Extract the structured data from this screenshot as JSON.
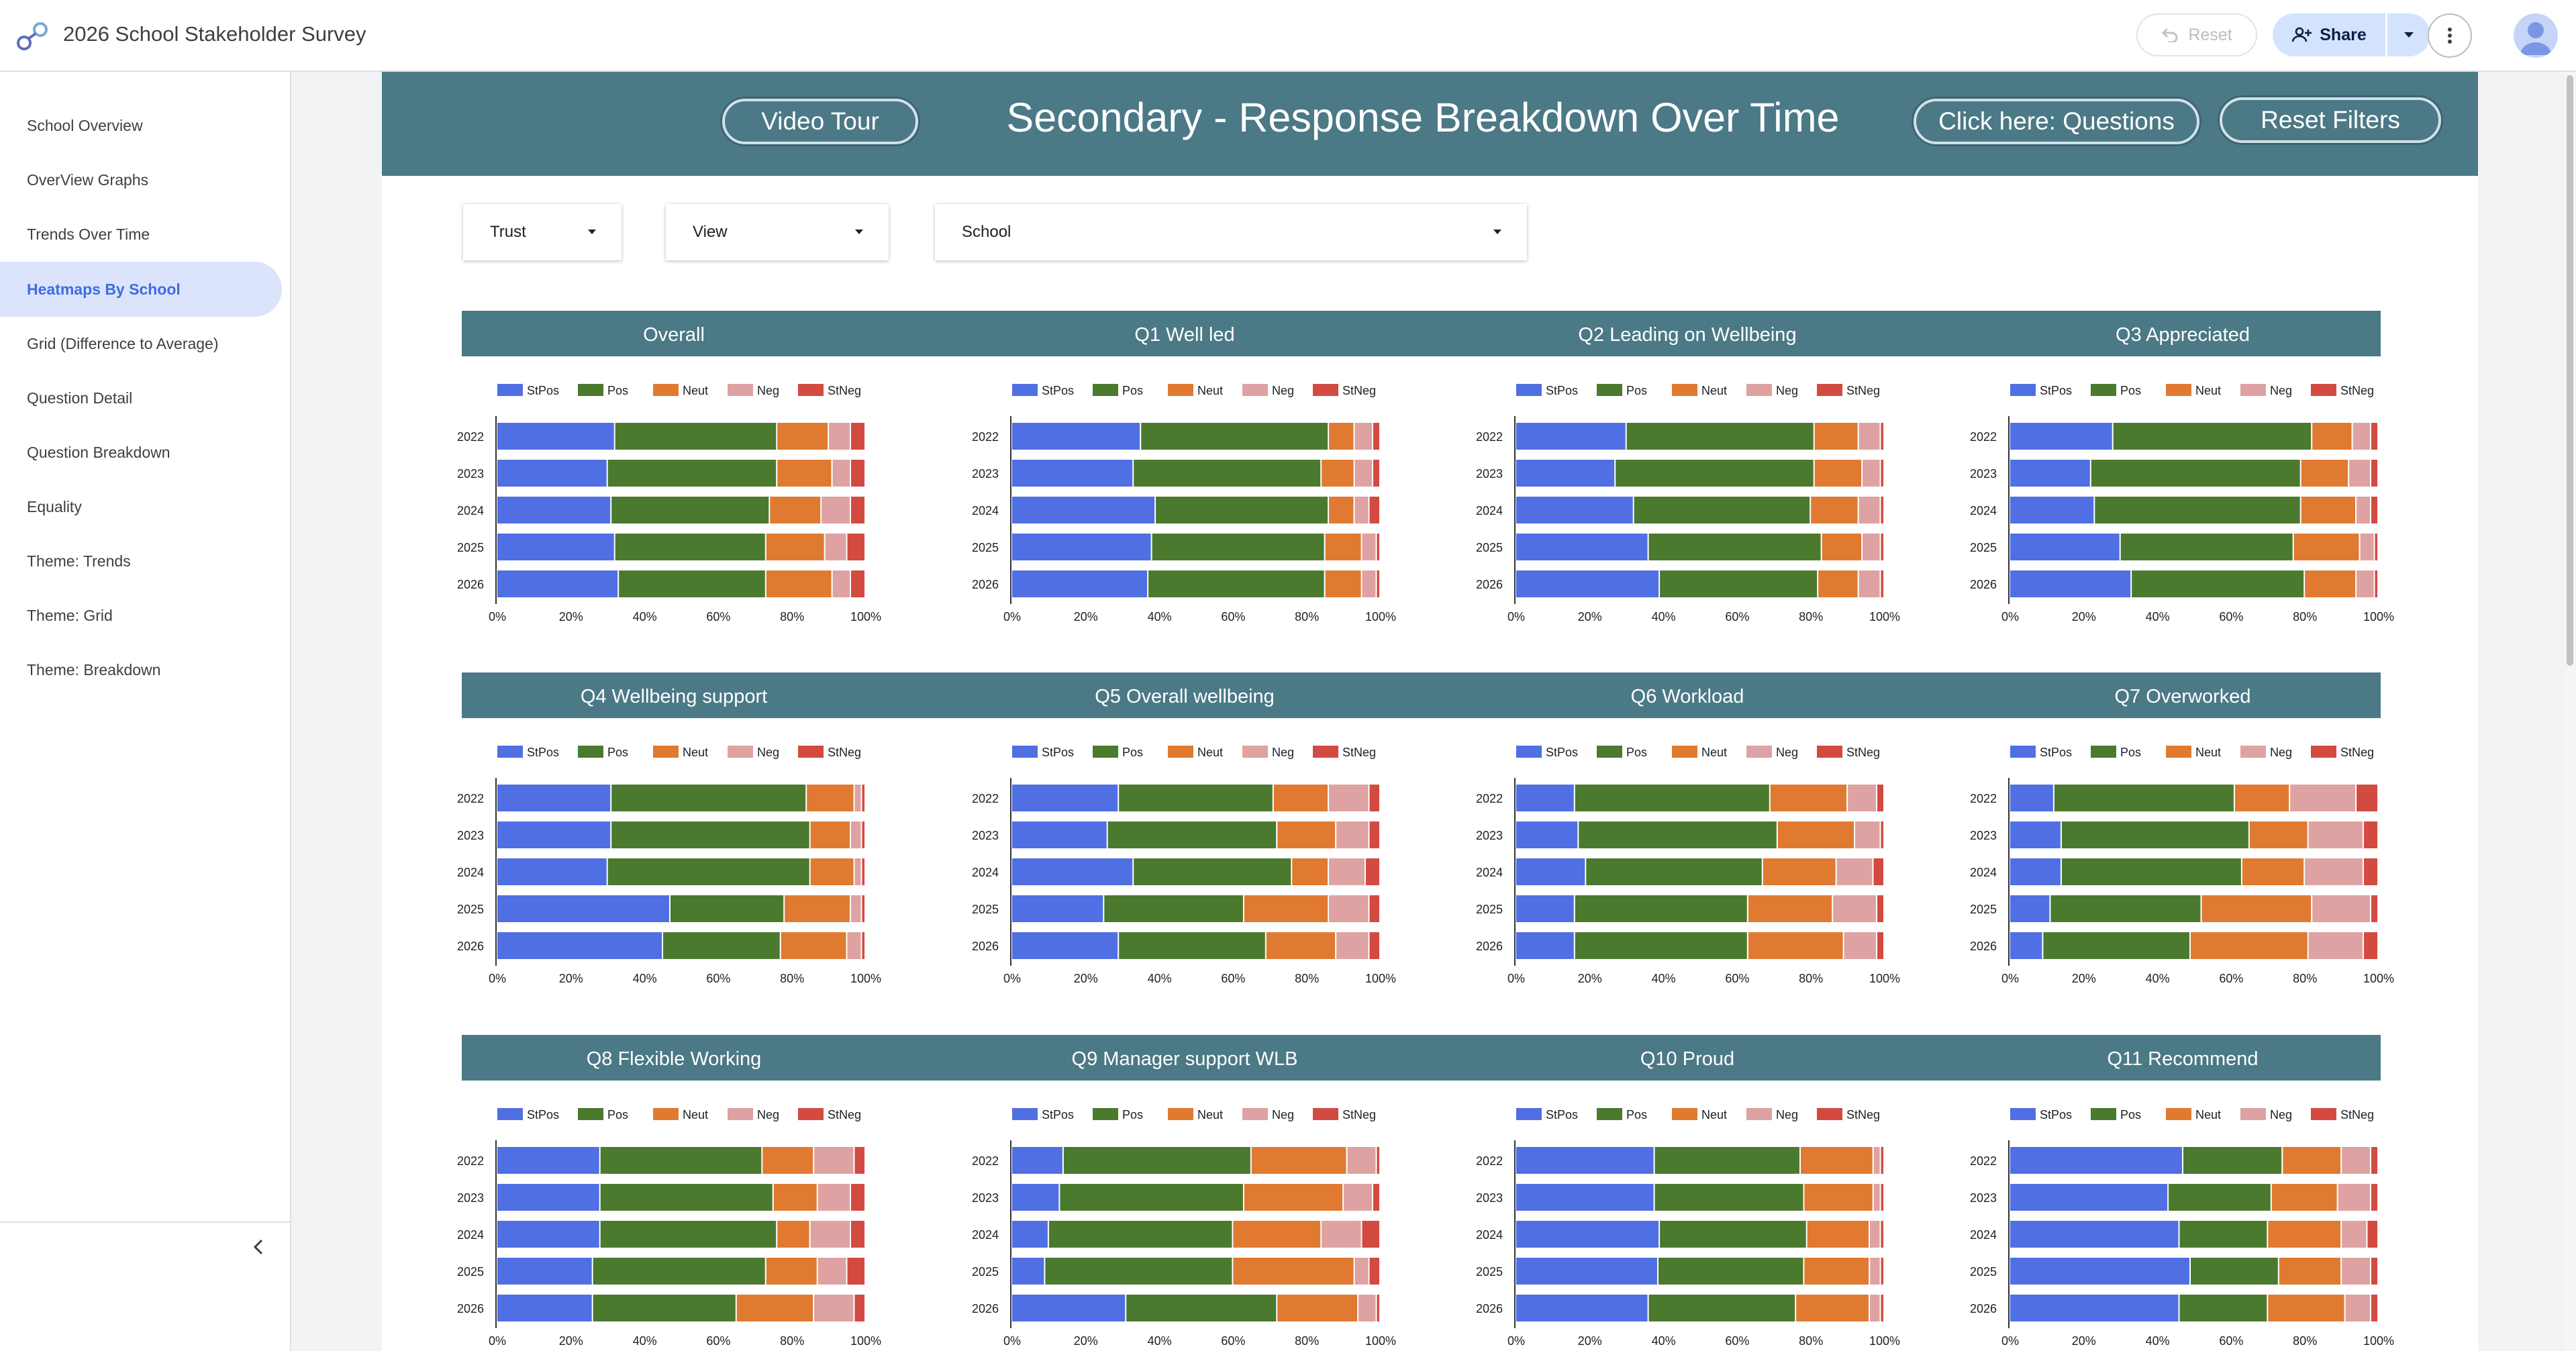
{
  "app": {
    "title": "2026 School Stakeholder Survey"
  },
  "toolbar": {
    "reset_label": "Reset",
    "share_label": "Share"
  },
  "sidebar": {
    "items": [
      {
        "label": "School Overview"
      },
      {
        "label": "OverView Graphs"
      },
      {
        "label": "Trends Over Time"
      },
      {
        "label": "Heatmaps By School",
        "active": true
      },
      {
        "label": "Grid (Difference to Average)"
      },
      {
        "label": "Question Detail"
      },
      {
        "label": "Question Breakdown"
      },
      {
        "label": "Equality"
      },
      {
        "label": "Theme: Trends"
      },
      {
        "label": "Theme: Grid"
      },
      {
        "label": "Theme: Breakdown"
      }
    ]
  },
  "header": {
    "title": "Secondary - Response Breakdown Over Time",
    "video_tour": "Video Tour",
    "questions_btn": "Click here: Questions",
    "reset_filters": "Reset Filters"
  },
  "filters": {
    "trust": "Trust",
    "view": "View",
    "school": "School"
  },
  "colors": {
    "StPos": "#4f6fe3",
    "Pos": "#4b7a2f",
    "Neut": "#e07a31",
    "Neg": "#dea2a3",
    "StNeg": "#d24a40",
    "band": "#4b7986"
  },
  "chart_data": {
    "type": "bar",
    "orientation": "horizontal-stacked-100",
    "legend": [
      "StPos",
      "Pos",
      "Neut",
      "Neg",
      "StNeg"
    ],
    "categories": [
      "2022",
      "2023",
      "2024",
      "2025",
      "2026"
    ],
    "x_ticks": [
      "0%",
      "20%",
      "40%",
      "60%",
      "80%",
      "100%"
    ],
    "xlim": [
      0,
      100
    ],
    "panels": [
      {
        "title": "Overall",
        "rows": [
          [
            32,
            44,
            14,
            6,
            4
          ],
          [
            30,
            46,
            15,
            5,
            4
          ],
          [
            31,
            43,
            14,
            8,
            4
          ],
          [
            32,
            41,
            16,
            6,
            5
          ],
          [
            33,
            40,
            18,
            5,
            4
          ]
        ]
      },
      {
        "title": "Q1 Well led",
        "rows": [
          [
            35,
            51,
            7,
            5,
            2
          ],
          [
            33,
            51,
            9,
            5,
            2
          ],
          [
            39,
            47,
            7,
            4,
            3
          ],
          [
            38,
            47,
            10,
            4,
            1
          ],
          [
            37,
            48,
            10,
            4,
            1
          ]
        ]
      },
      {
        "title": "Q2 Leading on Wellbeing",
        "rows": [
          [
            30,
            51,
            12,
            6,
            1
          ],
          [
            27,
            54,
            13,
            5,
            1
          ],
          [
            32,
            48,
            13,
            6,
            1
          ],
          [
            36,
            47,
            11,
            5,
            1
          ],
          [
            39,
            43,
            11,
            6,
            1
          ]
        ]
      },
      {
        "title": "Q3 Appreciated",
        "rows": [
          [
            28,
            54,
            11,
            5,
            2
          ],
          [
            22,
            57,
            13,
            6,
            2
          ],
          [
            23,
            56,
            15,
            4,
            2
          ],
          [
            30,
            47,
            18,
            4,
            1
          ],
          [
            33,
            47,
            14,
            5,
            1
          ]
        ]
      },
      {
        "title": "Q4 Wellbeing support",
        "rows": [
          [
            31,
            53,
            13,
            2,
            1
          ],
          [
            31,
            54,
            11,
            3,
            1
          ],
          [
            30,
            55,
            12,
            2,
            1
          ],
          [
            47,
            31,
            18,
            3,
            1
          ],
          [
            45,
            32,
            18,
            4,
            1
          ]
        ]
      },
      {
        "title": "Q5 Overall wellbeing",
        "rows": [
          [
            29,
            42,
            15,
            11,
            3
          ],
          [
            26,
            46,
            16,
            9,
            3
          ],
          [
            33,
            43,
            10,
            10,
            4
          ],
          [
            25,
            38,
            23,
            11,
            3
          ],
          [
            29,
            40,
            19,
            9,
            3
          ]
        ]
      },
      {
        "title": "Q6 Workload",
        "rows": [
          [
            16,
            53,
            21,
            8,
            2
          ],
          [
            17,
            54,
            21,
            7,
            1
          ],
          [
            19,
            48,
            20,
            10,
            3
          ],
          [
            16,
            47,
            23,
            12,
            2
          ],
          [
            16,
            47,
            26,
            9,
            2
          ]
        ]
      },
      {
        "title": "Q7 Overworked",
        "rows": [
          [
            12,
            49,
            15,
            18,
            6
          ],
          [
            14,
            51,
            16,
            15,
            4
          ],
          [
            14,
            49,
            17,
            16,
            4
          ],
          [
            11,
            41,
            30,
            16,
            2
          ],
          [
            9,
            40,
            32,
            15,
            4
          ]
        ]
      },
      {
        "title": "Q8 Flexible Working",
        "rows": [
          [
            28,
            44,
            14,
            11,
            3
          ],
          [
            28,
            47,
            12,
            9,
            4
          ],
          [
            28,
            48,
            9,
            11,
            4
          ],
          [
            26,
            47,
            14,
            8,
            5
          ],
          [
            26,
            39,
            21,
            11,
            3
          ]
        ]
      },
      {
        "title": "Q9 Manager support WLB",
        "rows": [
          [
            14,
            51,
            26,
            8,
            1
          ],
          [
            13,
            50,
            27,
            8,
            2
          ],
          [
            10,
            50,
            24,
            11,
            5
          ],
          [
            9,
            51,
            33,
            4,
            3
          ],
          [
            31,
            41,
            22,
            5,
            1
          ]
        ]
      },
      {
        "title": "Q10 Proud",
        "rows": [
          [
            38,
            40,
            20,
            2,
            1
          ],
          [
            38,
            41,
            19,
            2,
            1
          ],
          [
            39,
            40,
            17,
            3,
            1
          ],
          [
            39,
            40,
            18,
            3,
            1
          ],
          [
            36,
            40,
            20,
            3,
            1
          ]
        ]
      },
      {
        "title": "Q11 Recommend",
        "rows": [
          [
            47,
            27,
            16,
            8,
            2
          ],
          [
            43,
            28,
            18,
            9,
            2
          ],
          [
            46,
            24,
            20,
            7,
            3
          ],
          [
            49,
            24,
            17,
            8,
            2
          ],
          [
            46,
            24,
            21,
            7,
            2
          ]
        ]
      }
    ]
  }
}
